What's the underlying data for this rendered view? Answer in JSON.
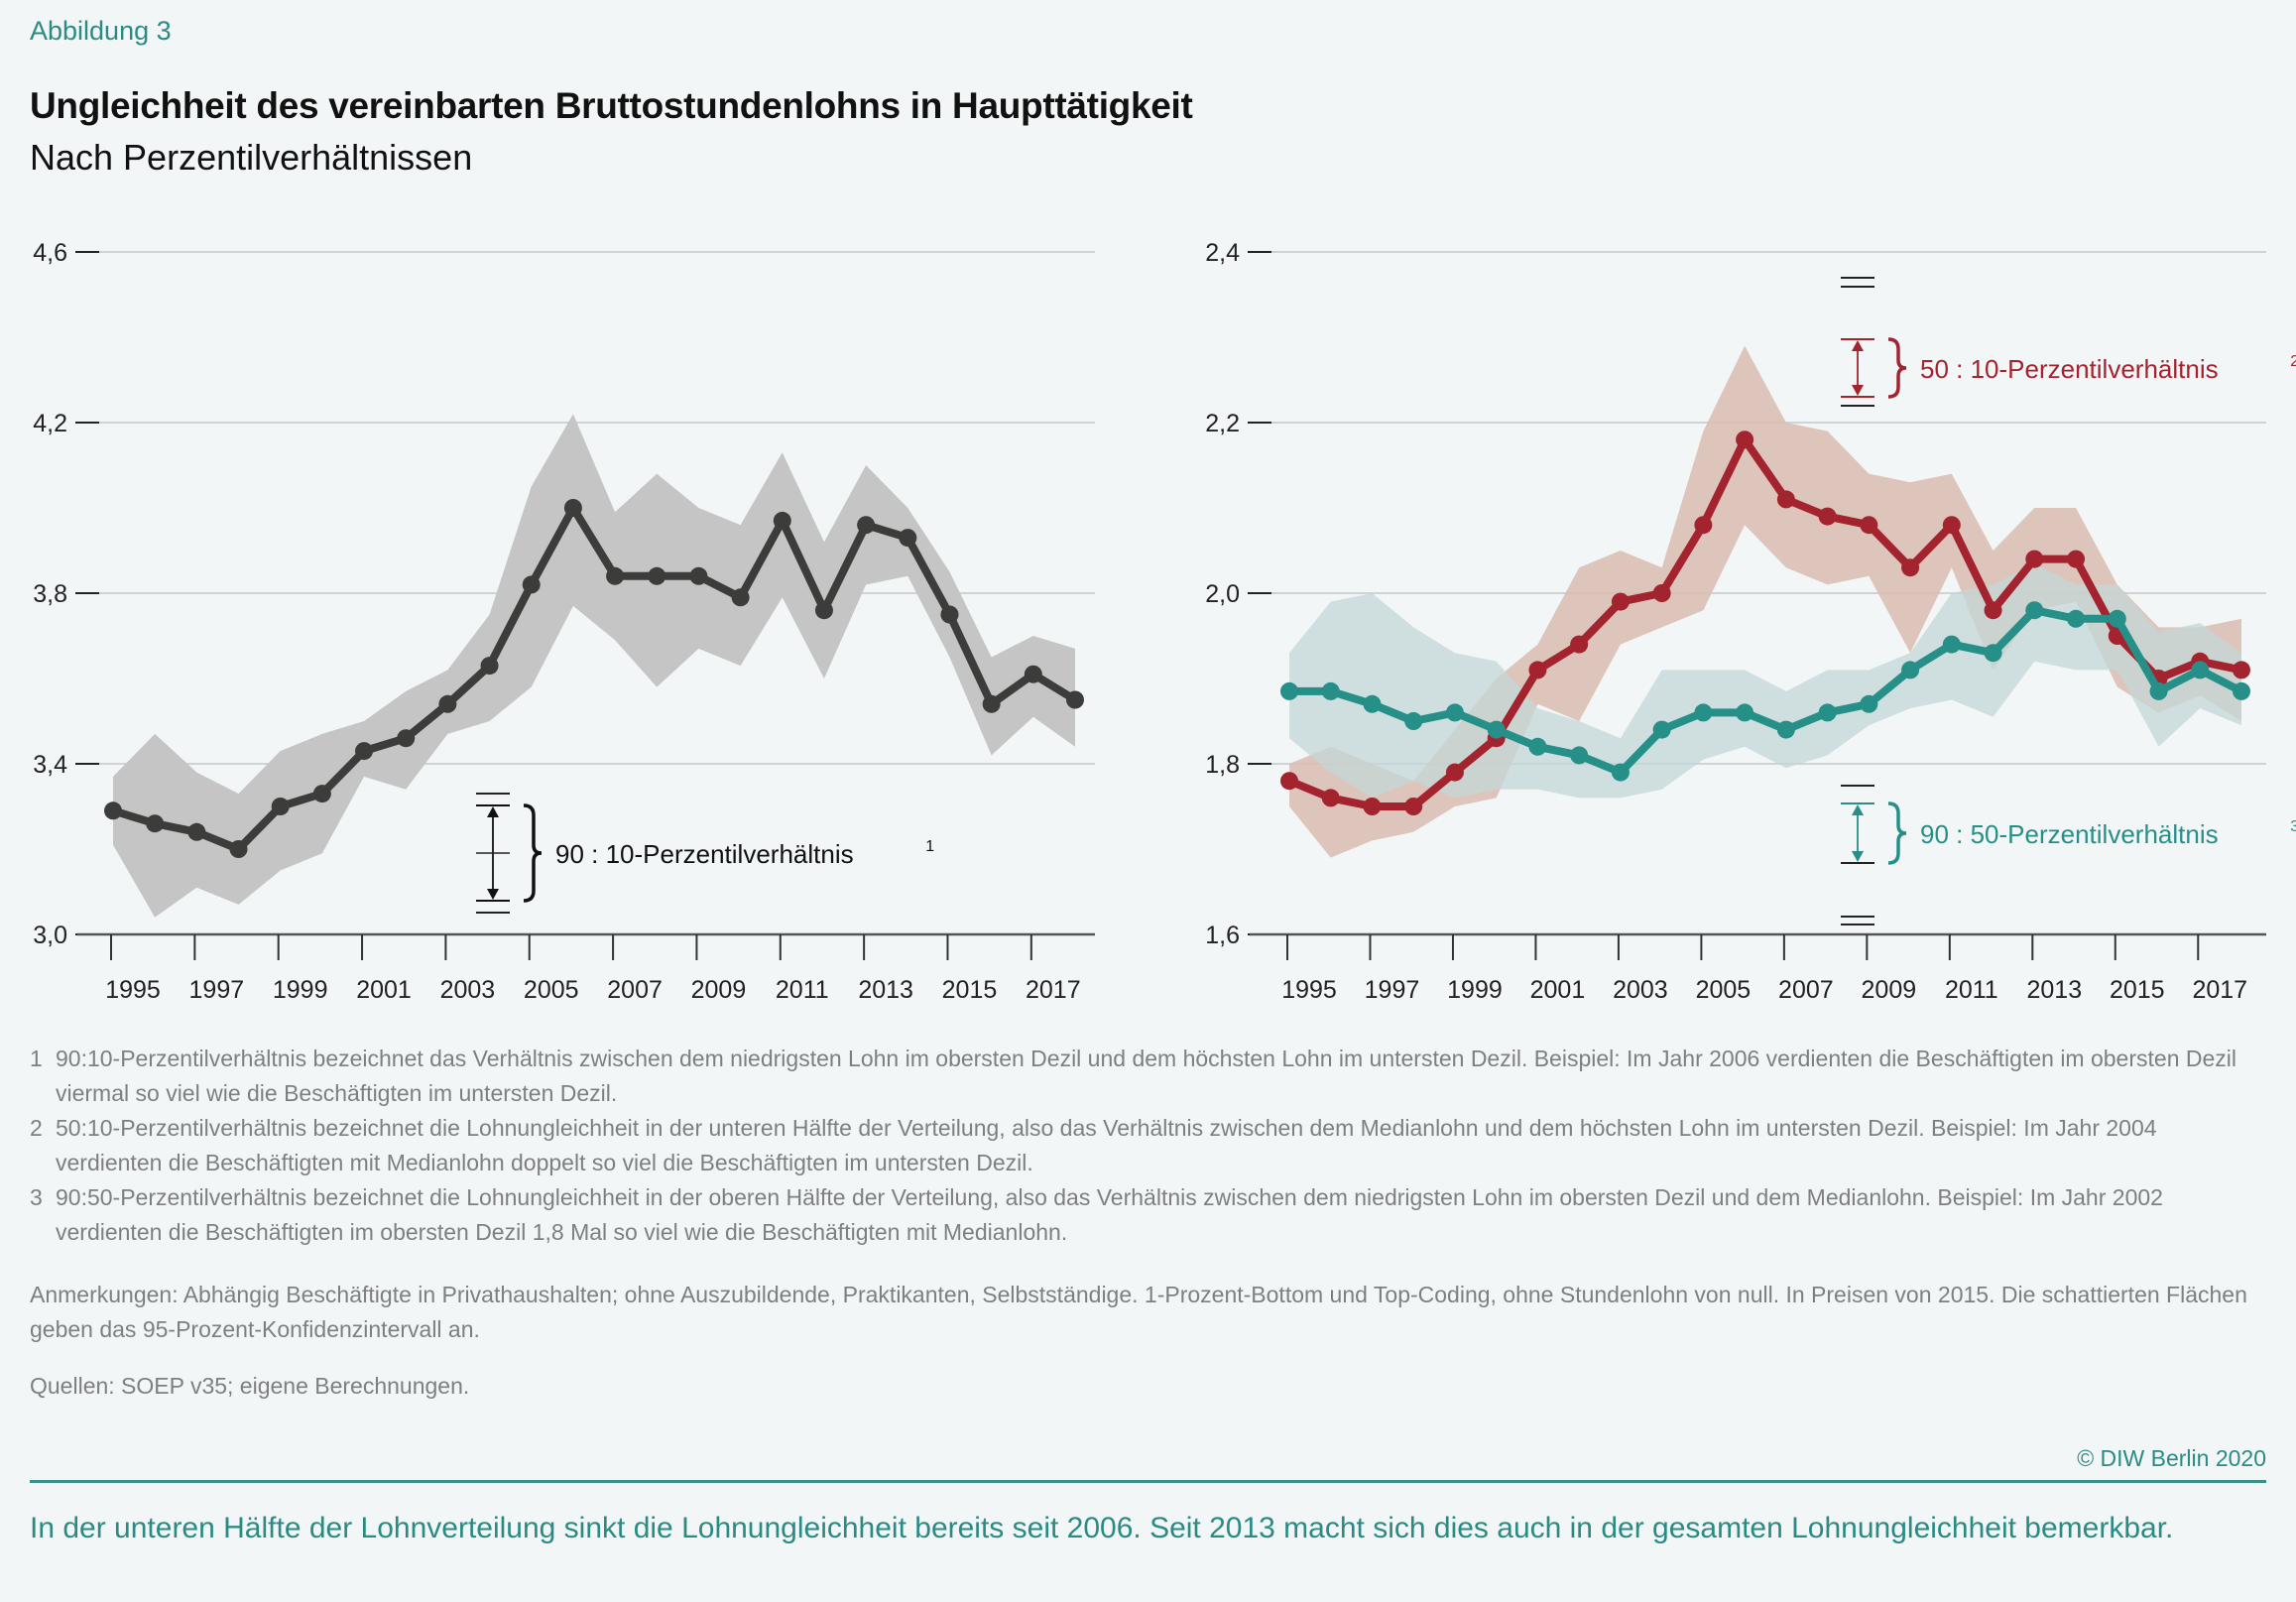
{
  "header": {
    "figure_label": "Abbildung 3",
    "title": "Ungleichheit des vereinbarten Bruttostundenlohns in Haupttätigkeit",
    "subtitle": "Nach Perzentilverhältnissen"
  },
  "colors": {
    "background": "#f2f6f7",
    "accent": "#2a8b84",
    "series_90_10": "#3c3c3a",
    "band_90_10": "#c4c5c4",
    "series_50_10": "#a3242f",
    "band_50_10": "#dbbcb0",
    "series_90_50": "#258f88",
    "band_90_50": "#c3d7d7"
  },
  "chart_data": [
    {
      "type": "line",
      "x": [
        1995,
        1996,
        1997,
        1998,
        1999,
        2000,
        2001,
        2002,
        2003,
        2004,
        2005,
        2006,
        2007,
        2008,
        2009,
        2010,
        2011,
        2012,
        2013,
        2014,
        2015,
        2016,
        2017,
        2018
      ],
      "xtick_labels": [
        "1995",
        "1997",
        "1999",
        "2001",
        "2003",
        "2005",
        "2007",
        "2009",
        "2011",
        "2013",
        "2015",
        "2017"
      ],
      "ylim": [
        3.0,
        4.6
      ],
      "yticks": [
        3.0,
        3.4,
        3.8,
        4.2,
        4.6
      ],
      "ytick_labels": [
        "3,0",
        "3,4",
        "3,8",
        "4,2",
        "4,6"
      ],
      "grid": true,
      "series": [
        {
          "name": "90:10-Perzentilverhältnis",
          "legend_label": "90 : 10-Perzentilverhältnis",
          "footnote_ref": "1",
          "values": [
            3.29,
            3.26,
            3.24,
            3.2,
            3.3,
            3.33,
            3.43,
            3.46,
            3.54,
            3.63,
            3.82,
            4.0,
            3.84,
            3.84,
            3.84,
            3.79,
            3.97,
            3.76,
            3.96,
            3.93,
            3.75,
            3.54,
            3.61,
            3.55
          ],
          "ci_upper": [
            3.37,
            3.47,
            3.38,
            3.33,
            3.43,
            3.47,
            3.5,
            3.57,
            3.62,
            3.75,
            4.05,
            4.22,
            3.99,
            4.08,
            4.0,
            3.96,
            4.13,
            3.92,
            4.1,
            4.0,
            3.85,
            3.65,
            3.7,
            3.67
          ],
          "ci_lower": [
            3.21,
            3.04,
            3.11,
            3.07,
            3.15,
            3.19,
            3.37,
            3.34,
            3.47,
            3.5,
            3.58,
            3.77,
            3.69,
            3.58,
            3.67,
            3.63,
            3.79,
            3.6,
            3.82,
            3.84,
            3.65,
            3.42,
            3.51,
            3.44
          ]
        }
      ]
    },
    {
      "type": "line",
      "x": [
        1995,
        1996,
        1997,
        1998,
        1999,
        2000,
        2001,
        2002,
        2003,
        2004,
        2005,
        2006,
        2007,
        2008,
        2009,
        2010,
        2011,
        2012,
        2013,
        2014,
        2015,
        2016,
        2017,
        2018
      ],
      "xtick_labels": [
        "1995",
        "1997",
        "1999",
        "2001",
        "2003",
        "2005",
        "2007",
        "2009",
        "2011",
        "2013",
        "2015",
        "2017"
      ],
      "ylim": [
        1.6,
        2.4
      ],
      "yticks": [
        1.6,
        1.8,
        2.0,
        2.2,
        2.4
      ],
      "ytick_labels": [
        "1,6",
        "1,8",
        "2,0",
        "2,2",
        "2,4"
      ],
      "grid": true,
      "series": [
        {
          "name": "50:10-Perzentilverhältnis",
          "legend_label": "50 : 10-Perzentilverhältnis",
          "footnote_ref": "2",
          "values": [
            1.78,
            1.76,
            1.75,
            1.75,
            1.79,
            1.83,
            1.91,
            1.94,
            1.99,
            2.0,
            2.08,
            2.18,
            2.11,
            2.09,
            2.08,
            2.03,
            2.08,
            1.98,
            2.04,
            2.04,
            1.95,
            1.9,
            1.92,
            1.91
          ],
          "ci_upper": [
            1.8,
            1.82,
            1.8,
            1.78,
            1.84,
            1.9,
            1.94,
            2.03,
            2.05,
            2.03,
            2.19,
            2.29,
            2.2,
            2.19,
            2.14,
            2.13,
            2.14,
            2.05,
            2.1,
            2.1,
            2.01,
            1.96,
            1.96,
            1.97
          ],
          "ci_lower": [
            1.75,
            1.69,
            1.71,
            1.72,
            1.75,
            1.76,
            1.87,
            1.85,
            1.94,
            1.96,
            1.98,
            2.08,
            2.03,
            2.01,
            2.02,
            1.93,
            2.03,
            1.91,
            1.98,
            1.99,
            1.89,
            1.86,
            1.88,
            1.85
          ]
        },
        {
          "name": "90:50-Perzentilverhältnis",
          "legend_label": "90 : 50-Perzentilverhältnis",
          "footnote_ref": "3",
          "values": [
            1.885,
            1.885,
            1.87,
            1.85,
            1.86,
            1.84,
            1.82,
            1.81,
            1.79,
            1.84,
            1.86,
            1.86,
            1.84,
            1.86,
            1.87,
            1.91,
            1.94,
            1.93,
            1.98,
            1.97,
            1.97,
            1.885,
            1.91,
            1.885
          ],
          "ci_upper": [
            1.93,
            1.99,
            2.0,
            1.96,
            1.93,
            1.92,
            1.865,
            1.85,
            1.83,
            1.91,
            1.91,
            1.91,
            1.885,
            1.91,
            1.91,
            1.93,
            2.0,
            2.01,
            2.035,
            2.01,
            2.01,
            1.955,
            1.965,
            1.93
          ],
          "ci_lower": [
            1.83,
            1.79,
            1.76,
            1.78,
            1.76,
            1.77,
            1.77,
            1.76,
            1.76,
            1.77,
            1.805,
            1.82,
            1.795,
            1.81,
            1.845,
            1.865,
            1.875,
            1.855,
            1.92,
            1.91,
            1.91,
            1.82,
            1.865,
            1.845
          ]
        }
      ]
    }
  ],
  "footnotes": [
    {
      "num": "1",
      "text": "90:10-Perzentilverhältnis bezeichnet das Verhältnis zwischen dem niedrigsten Lohn im obersten Dezil und dem höchsten Lohn im untersten Dezil. Beispiel: Im Jahr 2006 verdienten die Beschäftigten im obersten Dezil viermal so viel wie die Beschäftigten im untersten Dezil."
    },
    {
      "num": "2",
      "text": "50:10-Perzentilverhältnis bezeichnet die Lohnungleichheit in der unteren Hälfte der Verteilung, also das Verhältnis zwischen dem Medianlohn und dem höchsten Lohn im untersten Dezil. Beispiel: Im Jahr 2004 verdienten die Beschäftigten mit Medianlohn doppelt so viel die Beschäftigten im untersten Dezil."
    },
    {
      "num": "3",
      "text": "90:50-Perzentilverhältnis bezeichnet die Lohnungleichheit in der oberen Hälfte der Verteilung, also das Verhältnis zwischen dem niedrigsten Lohn im obersten Dezil und dem Medianlohn. Beispiel: Im Jahr 2002 verdienten die Beschäftigten im obersten Dezil 1,8 Mal so viel wie die Beschäftigten mit Medianlohn."
    }
  ],
  "notes": "Anmerkungen: Abhängig Beschäftigte in Privathaushalten; ohne Auszubildende, Praktikanten, Selbstständige. 1-Prozent-Bottom und Top-Coding, ohne Stundenlohn von null. In Preisen von 2015. Die schattierten Flächen geben das 95-Prozent-Konfidenzintervall an.",
  "source": "Quellen: SOEP v35; eigene Berechnungen.",
  "copyright": "© DIW Berlin 2020",
  "summary": "In der unteren Hälfte der Lohnverteilung sinkt die Lohnungleichheit bereits seit 2006. Seit 2013 macht sich dies auch in der gesamten Lohnungleichheit bemerkbar."
}
